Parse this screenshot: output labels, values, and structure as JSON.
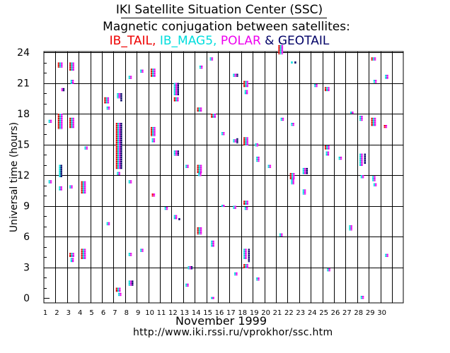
{
  "title": "IKI Satellite Situation Center (SSC)",
  "subtitle": "Magnetic conjugation between satellites:",
  "month_label": "November    1999",
  "url": "http://www.iki.rssi.ru/vprokhor/ssc.htm",
  "chart_data": {
    "type": "scatter",
    "title": "Magnetic conjugation between satellites: IB_TAIL, IB_MAG5, POLAR & GEOTAIL",
    "xlabel": "November 1999",
    "ylabel": "Universal time  (hours)",
    "xlim": [
      1,
      32
    ],
    "ylim": [
      0,
      25
    ],
    "x_ticks": [
      1,
      2,
      3,
      4,
      5,
      6,
      7,
      8,
      9,
      10,
      11,
      12,
      13,
      14,
      15,
      16,
      17,
      18,
      19,
      20,
      21,
      22,
      23,
      24,
      25,
      26,
      27,
      28,
      29,
      30
    ],
    "y_ticks": [
      0,
      3,
      6,
      9,
      12,
      15,
      18,
      21,
      24
    ],
    "grid": true,
    "legend": [
      {
        "name": "IB_TAIL",
        "color": "#ee0000"
      },
      {
        "name": "IB_MAG5",
        "color": "#00dddd"
      },
      {
        "name": "POLAR",
        "color": "#ee00ee"
      },
      {
        "name": "GEOTAIL",
        "color": "#000066"
      }
    ],
    "legend_separators": [
      ", ",
      ", ",
      " & "
    ],
    "events": [
      {
        "day": 1.4,
        "start": 17.1,
        "end": 17.4,
        "sats": [
          "IB_MAG5",
          "POLAR"
        ]
      },
      {
        "day": 1.4,
        "start": 11.2,
        "end": 11.5,
        "sats": [
          "IB_MAG5",
          "POLAR"
        ]
      },
      {
        "day": 2.2,
        "start": 22.5,
        "end": 23.0,
        "sats": [
          "IB_TAIL",
          "IB_MAG5",
          "POLAR"
        ]
      },
      {
        "day": 2.2,
        "start": 16.5,
        "end": 18.0,
        "sats": [
          "IB_TAIL",
          "IB_MAG5",
          "POLAR"
        ]
      },
      {
        "day": 2.3,
        "start": 11.8,
        "end": 13.0,
        "sats": [
          "IB_MAG5",
          "GEOTAIL"
        ]
      },
      {
        "day": 2.3,
        "start": 10.5,
        "end": 10.9,
        "sats": [
          "IB_MAG5",
          "POLAR"
        ]
      },
      {
        "day": 2.5,
        "start": 20.2,
        "end": 20.5,
        "sats": [
          "POLAR",
          "GEOTAIL"
        ]
      },
      {
        "day": 3.2,
        "start": 22.2,
        "end": 23.0,
        "sats": [
          "IB_TAIL",
          "IB_MAG5",
          "POLAR"
        ]
      },
      {
        "day": 3.3,
        "start": 20.9,
        "end": 21.3,
        "sats": [
          "IB_MAG5",
          "POLAR"
        ]
      },
      {
        "day": 3.2,
        "start": 16.6,
        "end": 17.6,
        "sats": [
          "IB_TAIL",
          "IB_MAG5",
          "POLAR"
        ]
      },
      {
        "day": 3.2,
        "start": 10.7,
        "end": 11.0,
        "sats": [
          "IB_MAG5",
          "POLAR"
        ]
      },
      {
        "day": 3.2,
        "start": 4.0,
        "end": 4.4,
        "sats": [
          "IB_TAIL",
          "IB_MAG5",
          "POLAR"
        ]
      },
      {
        "day": 3.3,
        "start": 3.5,
        "end": 3.9,
        "sats": [
          "IB_MAG5",
          "POLAR"
        ]
      },
      {
        "day": 4.2,
        "start": 10.2,
        "end": 11.4,
        "sats": [
          "IB_TAIL",
          "IB_MAG5",
          "POLAR"
        ]
      },
      {
        "day": 4.2,
        "start": 3.8,
        "end": 4.8,
        "sats": [
          "IB_TAIL",
          "IB_MAG5",
          "POLAR"
        ]
      },
      {
        "day": 4.5,
        "start": 14.5,
        "end": 14.8,
        "sats": [
          "IB_MAG5",
          "POLAR"
        ]
      },
      {
        "day": 6.2,
        "start": 19.0,
        "end": 19.6,
        "sats": [
          "IB_TAIL",
          "IB_MAG5",
          "POLAR"
        ]
      },
      {
        "day": 6.4,
        "start": 18.4,
        "end": 18.7,
        "sats": [
          "IB_MAG5",
          "POLAR"
        ]
      },
      {
        "day": 6.4,
        "start": 7.1,
        "end": 7.4,
        "sats": [
          "IB_MAG5",
          "POLAR"
        ]
      },
      {
        "day": 7.2,
        "start": 12.6,
        "end": 17.1,
        "sats": [
          "IB_TAIL",
          "IB_MAG5",
          "POLAR"
        ]
      },
      {
        "day": 7.3,
        "start": 19.5,
        "end": 20.0,
        "sats": [
          "IB_MAG5",
          "POLAR"
        ]
      },
      {
        "day": 7.6,
        "start": 12.6,
        "end": 17.1,
        "sats": [
          "GEOTAIL"
        ]
      },
      {
        "day": 7.6,
        "start": 19.2,
        "end": 20.0,
        "sats": [
          "GEOTAIL"
        ]
      },
      {
        "day": 7.2,
        "start": 0.6,
        "end": 1.0,
        "sats": [
          "IB_TAIL",
          "IB_MAG5",
          "POLAR"
        ]
      },
      {
        "day": 7.4,
        "start": 0.2,
        "end": 0.5,
        "sats": [
          "IB_MAG5",
          "POLAR"
        ]
      },
      {
        "day": 7.3,
        "start": 12.0,
        "end": 12.3,
        "sats": [
          "IB_MAG5",
          "POLAR"
        ]
      },
      {
        "day": 8.3,
        "start": 21.4,
        "end": 21.7,
        "sats": [
          "IB_MAG5",
          "POLAR"
        ]
      },
      {
        "day": 8.3,
        "start": 11.2,
        "end": 11.5,
        "sats": [
          "IB_MAG5",
          "POLAR"
        ]
      },
      {
        "day": 8.3,
        "start": 4.1,
        "end": 4.4,
        "sats": [
          "IB_MAG5",
          "POLAR"
        ]
      },
      {
        "day": 8.3,
        "start": 1.2,
        "end": 1.7,
        "sats": [
          "IB_MAG5",
          "POLAR",
          "GEOTAIL"
        ]
      },
      {
        "day": 9.3,
        "start": 22.0,
        "end": 22.3,
        "sats": [
          "IB_MAG5",
          "POLAR"
        ]
      },
      {
        "day": 9.3,
        "start": 4.5,
        "end": 4.8,
        "sats": [
          "IB_MAG5",
          "POLAR"
        ]
      },
      {
        "day": 10.2,
        "start": 21.6,
        "end": 22.4,
        "sats": [
          "IB_TAIL",
          "IB_MAG5",
          "POLAR"
        ]
      },
      {
        "day": 10.2,
        "start": 15.8,
        "end": 16.7,
        "sats": [
          "IB_TAIL",
          "IB_MAG5",
          "POLAR"
        ]
      },
      {
        "day": 10.3,
        "start": 15.2,
        "end": 15.6,
        "sats": [
          "IB_MAG5",
          "POLAR"
        ]
      },
      {
        "day": 10.3,
        "start": 9.9,
        "end": 10.2,
        "sats": [
          "IB_TAIL",
          "POLAR"
        ]
      },
      {
        "day": 11.4,
        "start": 8.6,
        "end": 8.9,
        "sats": [
          "IB_MAG5",
          "POLAR"
        ]
      },
      {
        "day": 12.2,
        "start": 19.8,
        "end": 21.0,
        "sats": [
          "IB_MAG5",
          "POLAR"
        ]
      },
      {
        "day": 12.2,
        "start": 19.2,
        "end": 19.6,
        "sats": [
          "IB_TAIL",
          "IB_MAG5",
          "POLAR"
        ]
      },
      {
        "day": 12.5,
        "start": 19.8,
        "end": 21.0,
        "sats": [
          "GEOTAIL"
        ]
      },
      {
        "day": 12.2,
        "start": 13.9,
        "end": 14.4,
        "sats": [
          "IB_MAG5",
          "POLAR"
        ]
      },
      {
        "day": 12.5,
        "start": 13.9,
        "end": 14.4,
        "sats": [
          "GEOTAIL"
        ]
      },
      {
        "day": 12.2,
        "start": 7.7,
        "end": 8.1,
        "sats": [
          "IB_MAG5",
          "POLAR"
        ]
      },
      {
        "day": 12.6,
        "start": 7.7,
        "end": 7.8,
        "sats": [
          "GEOTAIL"
        ]
      },
      {
        "day": 13.2,
        "start": 12.7,
        "end": 13.0,
        "sats": [
          "IB_MAG5",
          "POLAR"
        ]
      },
      {
        "day": 13.4,
        "start": 2.8,
        "end": 3.1,
        "sats": [
          "IB_MAG5",
          "POLAR",
          "GEOTAIL"
        ]
      },
      {
        "day": 13.2,
        "start": 1.1,
        "end": 1.4,
        "sats": [
          "IB_MAG5",
          "POLAR"
        ]
      },
      {
        "day": 14.2,
        "start": 18.2,
        "end": 18.6,
        "sats": [
          "IB_TAIL",
          "IB_MAG5",
          "POLAR"
        ]
      },
      {
        "day": 14.4,
        "start": 22.4,
        "end": 22.7,
        "sats": [
          "IB_MAG5",
          "POLAR"
        ]
      },
      {
        "day": 14.2,
        "start": 12.2,
        "end": 13.0,
        "sats": [
          "IB_TAIL",
          "IB_MAG5",
          "POLAR"
        ]
      },
      {
        "day": 14.3,
        "start": 11.9,
        "end": 12.2,
        "sats": [
          "IB_MAG5",
          "POLAR"
        ]
      },
      {
        "day": 14.2,
        "start": 6.2,
        "end": 6.9,
        "sats": [
          "IB_TAIL",
          "IB_MAG5",
          "POLAR"
        ]
      },
      {
        "day": 15.3,
        "start": 23.2,
        "end": 23.5,
        "sats": [
          "IB_MAG5",
          "POLAR"
        ]
      },
      {
        "day": 15.4,
        "start": 17.6,
        "end": 18.0,
        "sats": [
          "IB_TAIL",
          "IB_MAG5",
          "POLAR"
        ]
      },
      {
        "day": 15.4,
        "start": 5.0,
        "end": 5.6,
        "sats": [
          "IB_MAG5",
          "POLAR"
        ]
      },
      {
        "day": 15.4,
        "start": -0.1,
        "end": 0.1,
        "sats": [
          "IB_MAG5",
          "POLAR"
        ]
      },
      {
        "day": 16.3,
        "start": 15.9,
        "end": 16.2,
        "sats": [
          "IB_MAG5",
          "POLAR"
        ]
      },
      {
        "day": 16.3,
        "start": 8.9,
        "end": 9.1,
        "sats": [
          "IB_MAG5",
          "POLAR"
        ]
      },
      {
        "day": 17.3,
        "start": 21.6,
        "end": 21.9,
        "sats": [
          "IB_MAG5",
          "POLAR"
        ]
      },
      {
        "day": 17.6,
        "start": 21.6,
        "end": 21.9,
        "sats": [
          "GEOTAIL"
        ]
      },
      {
        "day": 17.3,
        "start": 15.2,
        "end": 15.5,
        "sats": [
          "IB_MAG5",
          "POLAR"
        ]
      },
      {
        "day": 17.6,
        "start": 15.1,
        "end": 15.6,
        "sats": [
          "GEOTAIL"
        ]
      },
      {
        "day": 17.3,
        "start": 8.7,
        "end": 9.0,
        "sats": [
          "IB_MAG5",
          "POLAR"
        ]
      },
      {
        "day": 17.4,
        "start": 2.2,
        "end": 2.5,
        "sats": [
          "IB_MAG5",
          "POLAR"
        ]
      },
      {
        "day": 18.2,
        "start": 20.6,
        "end": 21.2,
        "sats": [
          "IB_TAIL",
          "IB_MAG5",
          "POLAR"
        ]
      },
      {
        "day": 18.3,
        "start": 19.9,
        "end": 20.3,
        "sats": [
          "IB_MAG5",
          "POLAR"
        ]
      },
      {
        "day": 18.2,
        "start": 14.9,
        "end": 15.7,
        "sats": [
          "IB_TAIL",
          "IB_MAG5",
          "POLAR"
        ]
      },
      {
        "day": 18.2,
        "start": 9.1,
        "end": 9.5,
        "sats": [
          "IB_TAIL",
          "IB_MAG5",
          "POLAR"
        ]
      },
      {
        "day": 18.3,
        "start": 8.6,
        "end": 8.9,
        "sats": [
          "IB_MAG5",
          "POLAR"
        ]
      },
      {
        "day": 18.2,
        "start": 3.8,
        "end": 4.8,
        "sats": [
          "IB_MAG5",
          "POLAR"
        ]
      },
      {
        "day": 18.6,
        "start": 3.5,
        "end": 4.8,
        "sats": [
          "GEOTAIL"
        ]
      },
      {
        "day": 18.2,
        "start": 2.9,
        "end": 3.3,
        "sats": [
          "IB_TAIL",
          "IB_MAG5",
          "POLAR"
        ]
      },
      {
        "day": 19.2,
        "start": 14.8,
        "end": 15.1,
        "sats": [
          "IB_MAG5",
          "POLAR"
        ]
      },
      {
        "day": 19.3,
        "start": 13.3,
        "end": 13.8,
        "sats": [
          "IB_MAG5",
          "POLAR"
        ]
      },
      {
        "day": 19.3,
        "start": 1.7,
        "end": 2.0,
        "sats": [
          "IB_MAG5",
          "POLAR"
        ]
      },
      {
        "day": 20.3,
        "start": 12.7,
        "end": 13.0,
        "sats": [
          "IB_MAG5",
          "POLAR"
        ]
      },
      {
        "day": 21.2,
        "start": 23.8,
        "end": 24.7,
        "sats": [
          "IB_TAIL",
          "IB_MAG5",
          "POLAR"
        ]
      },
      {
        "day": 21.4,
        "start": 17.3,
        "end": 17.6,
        "sats": [
          "IB_MAG5",
          "POLAR"
        ]
      },
      {
        "day": 21.3,
        "start": 6.0,
        "end": 6.3,
        "sats": [
          "IB_MAG5",
          "POLAR"
        ]
      },
      {
        "day": 22.2,
        "start": 11.6,
        "end": 12.2,
        "sats": [
          "IB_TAIL",
          "IB_MAG5",
          "POLAR"
        ]
      },
      {
        "day": 22.3,
        "start": 11.1,
        "end": 11.6,
        "sats": [
          "IB_MAG5",
          "POLAR"
        ]
      },
      {
        "day": 22.3,
        "start": 22.9,
        "end": 23.1,
        "sats": [
          "IB_MAG5"
        ]
      },
      {
        "day": 22.6,
        "start": 22.9,
        "end": 23.1,
        "sats": [
          "GEOTAIL"
        ]
      },
      {
        "day": 22.3,
        "start": 16.8,
        "end": 17.1,
        "sats": [
          "IB_MAG5",
          "POLAR"
        ]
      },
      {
        "day": 23.3,
        "start": 12.1,
        "end": 12.7,
        "sats": [
          "IB_MAG5",
          "POLAR"
        ]
      },
      {
        "day": 23.6,
        "start": 12.1,
        "end": 12.7,
        "sats": [
          "GEOTAIL"
        ]
      },
      {
        "day": 23.3,
        "start": 10.1,
        "end": 10.6,
        "sats": [
          "IB_MAG5",
          "POLAR"
        ]
      },
      {
        "day": 24.3,
        "start": 20.6,
        "end": 20.9,
        "sats": [
          "IB_MAG5",
          "POLAR"
        ]
      },
      {
        "day": 25.2,
        "start": 20.2,
        "end": 20.6,
        "sats": [
          "IB_TAIL",
          "IB_MAG5",
          "POLAR"
        ]
      },
      {
        "day": 25.2,
        "start": 14.5,
        "end": 14.9,
        "sats": [
          "IB_TAIL",
          "IB_MAG5",
          "POLAR"
        ]
      },
      {
        "day": 25.3,
        "start": 13.9,
        "end": 14.3,
        "sats": [
          "IB_MAG5",
          "POLAR"
        ]
      },
      {
        "day": 25.4,
        "start": 2.6,
        "end": 2.9,
        "sats": [
          "IB_MAG5",
          "POLAR"
        ]
      },
      {
        "day": 26.4,
        "start": 13.5,
        "end": 13.8,
        "sats": [
          "IB_MAG5",
          "POLAR"
        ]
      },
      {
        "day": 27.4,
        "start": 18.0,
        "end": 18.2,
        "sats": [
          "IB_MAG5",
          "POLAR"
        ]
      },
      {
        "day": 27.3,
        "start": 6.6,
        "end": 7.1,
        "sats": [
          "IB_MAG5",
          "POLAR"
        ]
      },
      {
        "day": 28.2,
        "start": 17.3,
        "end": 17.8,
        "sats": [
          "IB_MAG5",
          "POLAR"
        ]
      },
      {
        "day": 28.2,
        "start": 12.9,
        "end": 14.1,
        "sats": [
          "IB_MAG5",
          "POLAR"
        ]
      },
      {
        "day": 28.6,
        "start": 13.1,
        "end": 14.1,
        "sats": [
          "GEOTAIL"
        ]
      },
      {
        "day": 28.3,
        "start": 11.7,
        "end": 12.0,
        "sats": [
          "IB_MAG5",
          "POLAR"
        ]
      },
      {
        "day": 28.3,
        "start": -0.1,
        "end": 0.2,
        "sats": [
          "IB_MAG5",
          "POLAR"
        ]
      },
      {
        "day": 29.2,
        "start": 23.2,
        "end": 23.5,
        "sats": [
          "IB_TAIL",
          "IB_MAG5",
          "POLAR"
        ]
      },
      {
        "day": 29.2,
        "start": 16.8,
        "end": 17.6,
        "sats": [
          "IB_TAIL",
          "IB_MAG5",
          "POLAR"
        ]
      },
      {
        "day": 29.3,
        "start": 11.4,
        "end": 11.9,
        "sats": [
          "IB_MAG5",
          "POLAR"
        ]
      },
      {
        "day": 29.4,
        "start": 10.9,
        "end": 11.2,
        "sats": [
          "IB_MAG5",
          "POLAR"
        ]
      },
      {
        "day": 29.4,
        "start": 21.0,
        "end": 21.3,
        "sats": [
          "IB_MAG5",
          "POLAR"
        ]
      },
      {
        "day": 30.4,
        "start": 21.4,
        "end": 21.8,
        "sats": [
          "IB_MAG5",
          "POLAR"
        ]
      },
      {
        "day": 30.3,
        "start": 16.6,
        "end": 16.9,
        "sats": [
          "IB_TAIL",
          "POLAR"
        ]
      },
      {
        "day": 30.4,
        "start": 4.0,
        "end": 4.3,
        "sats": [
          "IB_MAG5",
          "POLAR"
        ]
      }
    ]
  }
}
